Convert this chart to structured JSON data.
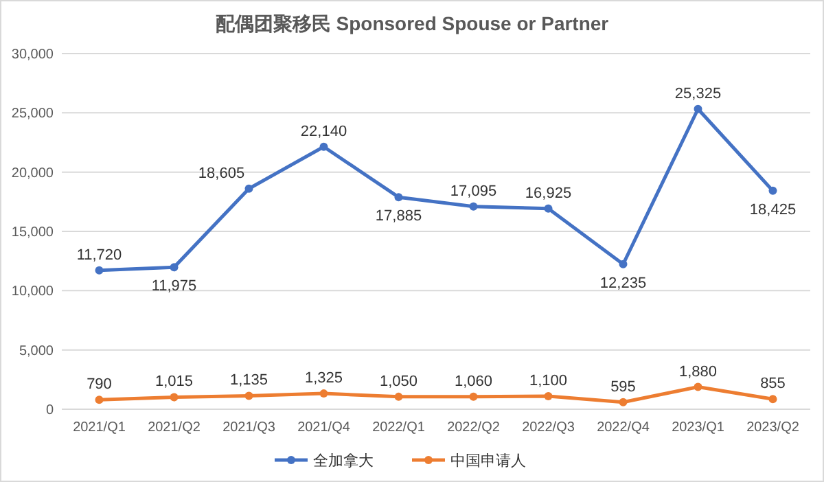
{
  "chart_data": {
    "type": "line",
    "title": "配偶团聚移民 Sponsored Spouse or Partner",
    "categories": [
      "2021/Q1",
      "2021/Q2",
      "2021/Q3",
      "2021/Q4",
      "2022/Q1",
      "2022/Q2",
      "2022/Q3",
      "2022/Q4",
      "2023/Q1",
      "2023/Q2"
    ],
    "series": [
      {
        "name": "全加拿大",
        "color": "#4472c4",
        "values": [
          11720,
          11975,
          18605,
          22140,
          17885,
          17095,
          16925,
          12235,
          25325,
          18425
        ],
        "value_labels": [
          "11,720",
          "11,975",
          "18,605",
          "22,140",
          "17,885",
          "17,095",
          "16,925",
          "12,235",
          "25,325",
          "18,425"
        ]
      },
      {
        "name": "中国申请人",
        "color": "#ed7d31",
        "values": [
          790,
          1015,
          1135,
          1325,
          1050,
          1060,
          1100,
          595,
          1880,
          855
        ],
        "value_labels": [
          "790",
          "1,015",
          "1,135",
          "1,325",
          "1,050",
          "1,060",
          "1,100",
          "595",
          "1,880",
          "855"
        ]
      }
    ],
    "ylim": [
      0,
      30000
    ],
    "yticks": [
      {
        "value": 0,
        "label": "0"
      },
      {
        "value": 5000,
        "label": "5,000"
      },
      {
        "value": 10000,
        "label": "10,000"
      },
      {
        "value": 15000,
        "label": "15,000"
      },
      {
        "value": 20000,
        "label": "20,000"
      },
      {
        "value": 25000,
        "label": "25,000"
      },
      {
        "value": 30000,
        "label": "30,000"
      }
    ],
    "grid": "y",
    "legend": "bottom",
    "marker": "circle",
    "line_style": "solid"
  }
}
